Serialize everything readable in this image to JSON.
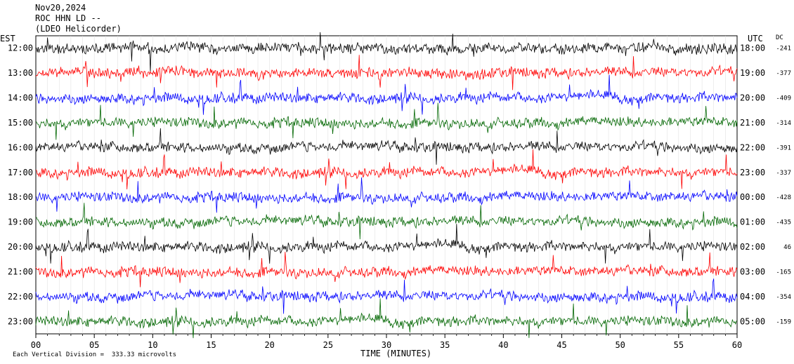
{
  "header": {
    "date": "Nov20,2024",
    "station": "ROC HHN LD --",
    "source": "(LDEO Helicorder)"
  },
  "left_tz": "EST",
  "right_tz": "UTC",
  "dc_header": "DC",
  "footer": "Each Vertical Division =  333.33 microvolts",
  "chart_data": {
    "type": "line",
    "title": "",
    "xlabel": "TIME (MINUTES)",
    "ylabel": "",
    "xlim": [
      0,
      60
    ],
    "x_ticks": [
      "00",
      "05",
      "10",
      "15",
      "20",
      "25",
      "30",
      "35",
      "40",
      "45",
      "50",
      "55",
      "60"
    ],
    "x_tick_values": [
      0,
      5,
      10,
      15,
      20,
      25,
      30,
      35,
      40,
      45,
      50,
      55,
      60
    ],
    "rows": [
      {
        "est": "12:00",
        "utc": "18:00",
        "dc": "-241",
        "color": "#000000"
      },
      {
        "est": "13:00",
        "utc": "19:00",
        "dc": "-377",
        "color": "#ff0000"
      },
      {
        "est": "14:00",
        "utc": "20:00",
        "dc": "-409",
        "color": "#0000ff"
      },
      {
        "est": "15:00",
        "utc": "21:00",
        "dc": "-314",
        "color": "#006600"
      },
      {
        "est": "16:00",
        "utc": "22:00",
        "dc": "-391",
        "color": "#000000"
      },
      {
        "est": "17:00",
        "utc": "23:00",
        "dc": "-337",
        "color": "#ff0000"
      },
      {
        "est": "18:00",
        "utc": "00:00",
        "dc": "-428",
        "color": "#0000ff"
      },
      {
        "est": "19:00",
        "utc": "01:00",
        "dc": "-435",
        "color": "#006600"
      },
      {
        "est": "20:00",
        "utc": "02:00",
        "dc": "46",
        "color": "#000000"
      },
      {
        "est": "21:00",
        "utc": "03:00",
        "dc": "-165",
        "color": "#ff0000"
      },
      {
        "est": "22:00",
        "utc": "04:00",
        "dc": "-354",
        "color": "#0000ff"
      },
      {
        "est": "23:00",
        "utc": "05:00",
        "dc": "-159",
        "color": "#006600"
      }
    ],
    "grid": true
  }
}
